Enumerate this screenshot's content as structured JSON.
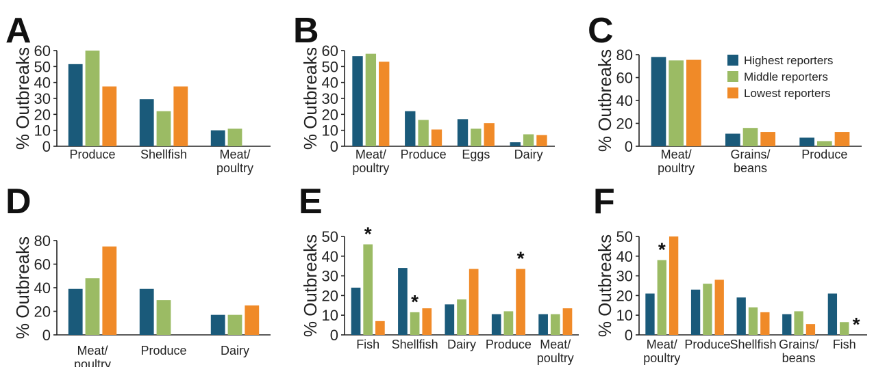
{
  "colors": {
    "highest": "#1a5a7a",
    "middle": "#9bbb64",
    "lowest": "#f08a28"
  },
  "legend": {
    "position": "top-right",
    "entries": [
      {
        "name": "Highest reporters",
        "color_key": "highest"
      },
      {
        "name": "Middle reporters",
        "color_key": "middle"
      },
      {
        "name": "Lowest reporters",
        "color_key": "lowest"
      }
    ]
  },
  "chart_data": [
    {
      "panel": "A",
      "type": "bar",
      "ylabel": "% Outbreaks",
      "ylim": [
        0,
        60
      ],
      "yticks": [
        "0",
        "10",
        "20",
        "30",
        "40",
        "50",
        "60"
      ],
      "categories": [
        [
          "Produce"
        ],
        [
          "Shellfish"
        ],
        [
          "Meat/",
          "poultry"
        ]
      ],
      "series": [
        {
          "name": "Highest reporters",
          "values": [
            51.5,
            29.5,
            10
          ]
        },
        {
          "name": "Middle reporters",
          "values": [
            60,
            22,
            11
          ]
        },
        {
          "name": "Lowest reporters",
          "values": [
            37.5,
            37.5,
            0
          ]
        }
      ],
      "stars": []
    },
    {
      "panel": "B",
      "type": "bar",
      "ylabel": "% Outbreaks",
      "ylim": [
        0,
        60
      ],
      "yticks": [
        "0",
        "10",
        "20",
        "30",
        "40",
        "50",
        "60"
      ],
      "categories": [
        [
          "Meat/",
          "poultry"
        ],
        [
          "Produce"
        ],
        [
          "Eggs"
        ],
        [
          "Dairy"
        ]
      ],
      "series": [
        {
          "name": "Highest reporters",
          "values": [
            56.5,
            22,
            17,
            2.5
          ]
        },
        {
          "name": "Middle reporters",
          "values": [
            58,
            16.5,
            11,
            7.5
          ]
        },
        {
          "name": "Lowest reporters",
          "values": [
            53,
            10.5,
            14.5,
            7
          ]
        }
      ],
      "stars": []
    },
    {
      "panel": "C",
      "type": "bar",
      "ylabel": "% Outbreaks",
      "ylim": [
        0,
        80
      ],
      "yticks": [
        "0",
        "20",
        "40",
        "60",
        "80"
      ],
      "categories": [
        [
          "Meat/",
          "poultry"
        ],
        [
          "Grains/",
          "beans"
        ],
        [
          "Produce"
        ]
      ],
      "series": [
        {
          "name": "Highest reporters",
          "values": [
            78,
            11,
            7.5
          ]
        },
        {
          "name": "Middle reporters",
          "values": [
            75,
            16,
            4.5
          ]
        },
        {
          "name": "Lowest reporters",
          "values": [
            75.5,
            12.5,
            12.5
          ]
        }
      ],
      "stars": []
    },
    {
      "panel": "D",
      "type": "bar",
      "ylabel": "% Outbreaks",
      "ylim": [
        0,
        80
      ],
      "yticks": [
        "0",
        "20",
        "40",
        "60",
        "80"
      ],
      "categories": [
        [
          "Meat/",
          "poultry"
        ],
        [
          "Produce"
        ],
        [
          "Dairy"
        ]
      ],
      "series": [
        {
          "name": "Highest reporters",
          "values": [
            39,
            39,
            17
          ]
        },
        {
          "name": "Middle reporters",
          "values": [
            48,
            29.5,
            17
          ]
        },
        {
          "name": "Lowest reporters",
          "values": [
            75,
            0,
            25
          ]
        }
      ],
      "stars": []
    },
    {
      "panel": "E",
      "type": "bar",
      "ylabel": "% Outbreaks",
      "ylim": [
        0,
        50
      ],
      "yticks": [
        "0",
        "10",
        "20",
        "30",
        "40",
        "50"
      ],
      "categories": [
        [
          "Fish"
        ],
        [
          "Shellfish"
        ],
        [
          "Dairy"
        ],
        [
          "Produce"
        ],
        [
          "Meat/",
          "poultry"
        ]
      ],
      "series": [
        {
          "name": "Highest reporters",
          "values": [
            24,
            34,
            15.5,
            10.5,
            10.5
          ]
        },
        {
          "name": "Middle reporters",
          "values": [
            46,
            11.5,
            18,
            12,
            10.5
          ]
        },
        {
          "name": "Lowest reporters",
          "values": [
            7,
            13.5,
            33.5,
            33.5,
            13.5
          ]
        }
      ],
      "stars": [
        {
          "category": 0,
          "series": 1
        },
        {
          "category": 1,
          "series": 1
        },
        {
          "category": 3,
          "series": 2
        }
      ]
    },
    {
      "panel": "F",
      "type": "bar",
      "ylabel": "% Outbreaks",
      "ylim": [
        0,
        50
      ],
      "yticks": [
        "0",
        "10",
        "20",
        "30",
        "40",
        "50"
      ],
      "categories": [
        [
          "Meat/",
          "poultry"
        ],
        [
          "Produce"
        ],
        [
          "Shellfish"
        ],
        [
          "Grains/",
          "beans"
        ],
        [
          "Fish"
        ]
      ],
      "series": [
        {
          "name": "Highest reporters",
          "values": [
            21,
            23,
            19,
            10.5,
            21
          ]
        },
        {
          "name": "Middle reporters",
          "values": [
            38,
            26,
            14,
            12,
            6.5
          ]
        },
        {
          "name": "Lowest reporters",
          "values": [
            50,
            28,
            11.5,
            5.5,
            0
          ]
        }
      ],
      "stars": [
        {
          "category": 0,
          "series": 1
        },
        {
          "category": 4,
          "series": 2
        }
      ]
    }
  ]
}
